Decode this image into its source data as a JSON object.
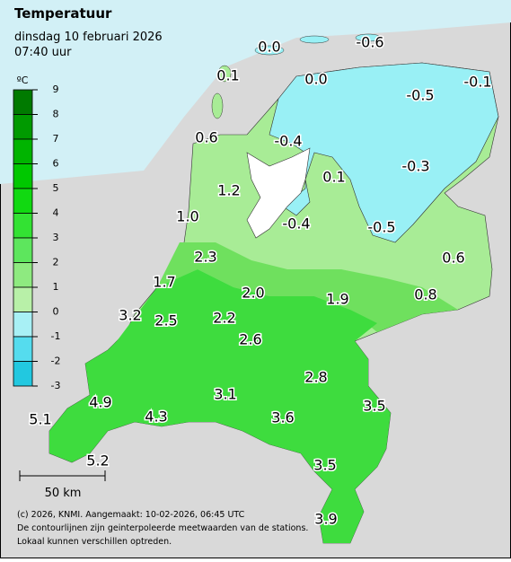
{
  "header": {
    "title": "Temperatuur",
    "date": "dinsdag 10 februari 2026",
    "time": "07:40 uur"
  },
  "legend": {
    "unit": "ºC",
    "ticks": [
      9,
      8,
      7,
      6,
      5,
      4,
      3,
      2,
      1,
      0,
      -1,
      -2,
      -3
    ],
    "colors": [
      "#007a00",
      "#009a00",
      "#00b400",
      "#00c800",
      "#11d911",
      "#33e233",
      "#5de65d",
      "#8eea80",
      "#b8f0a8",
      "#a8f0f5",
      "#55dcee",
      "#22c8e0"
    ]
  },
  "stations": [
    "0.0",
    "-0.6",
    "0.1",
    "0.0",
    "-0.5",
    "-0.1",
    "0.6",
    "-0.4",
    "-0.3",
    "0.1",
    "1.2",
    "1.0",
    "-0.4",
    "-0.5",
    "2.3",
    "0.6",
    "1.7",
    "2.0",
    "1.9",
    "0.8",
    "3.2",
    "2.5",
    "2.2",
    "2.6",
    "2.8",
    "3.1",
    "3.5",
    "4.9",
    "4.3",
    "3.6",
    "5.1",
    "5.2",
    "3.5",
    "3.9"
  ],
  "scale_bar": "50 km",
  "footer": [
    "(c) 2026, KNMI. Aangemaakt: 10-02-2026, 06:45 UTC",
    "De contourlijnen zijn geinterpoleerde meetwaarden van de stations.",
    "Lokaal kunnen verschillen optreden."
  ]
}
